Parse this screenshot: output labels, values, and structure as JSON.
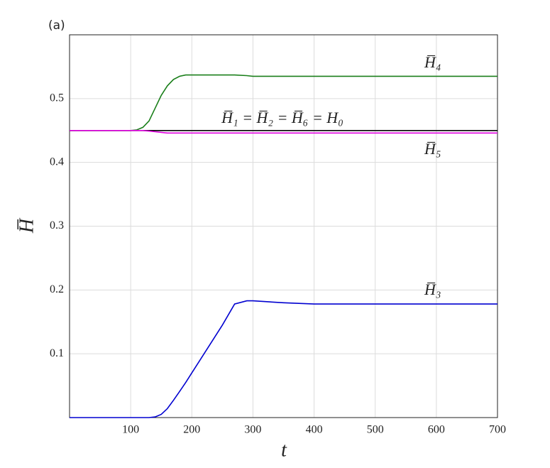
{
  "chart_data": {
    "type": "line",
    "panel_label": "(a)",
    "x_label": "t",
    "y_label": "H̅",
    "x": [
      0,
      100,
      110,
      120,
      130,
      140,
      150,
      160,
      170,
      180,
      190,
      200,
      250,
      270,
      290,
      300,
      350,
      400,
      500,
      600,
      700
    ],
    "series": [
      {
        "name": "H̅₄",
        "color": "#1a7f1a",
        "values": [
          0.45,
          0.45,
          0.451,
          0.455,
          0.465,
          0.485,
          0.505,
          0.52,
          0.53,
          0.535,
          0.537,
          0.537,
          0.537,
          0.537,
          0.536,
          0.535,
          0.535,
          0.535,
          0.535,
          0.535,
          0.535
        ]
      },
      {
        "name": "H̅₁ = H̅₂ = H̅₆ = H₀",
        "color": "#000000",
        "values": [
          0.45,
          0.45,
          0.45,
          0.45,
          0.45,
          0.45,
          0.45,
          0.45,
          0.45,
          0.45,
          0.45,
          0.45,
          0.45,
          0.45,
          0.45,
          0.45,
          0.45,
          0.45,
          0.45,
          0.45,
          0.45
        ]
      },
      {
        "name": "H̅₅",
        "color": "#e000e0",
        "values": [
          0.45,
          0.45,
          0.45,
          0.45,
          0.449,
          0.448,
          0.447,
          0.446,
          0.446,
          0.446,
          0.446,
          0.446,
          0.446,
          0.446,
          0.446,
          0.446,
          0.446,
          0.446,
          0.446,
          0.446,
          0.446
        ]
      },
      {
        "name": "H̅₃",
        "color": "#0000d0",
        "values": [
          0,
          0,
          0,
          0,
          0,
          0.001,
          0.005,
          0.014,
          0.027,
          0.041,
          0.055,
          0.07,
          0.145,
          0.178,
          0.183,
          0.183,
          0.18,
          0.178,
          0.178,
          0.178,
          0.178
        ]
      }
    ],
    "xlim": [
      0,
      700
    ],
    "xticks": [
      100,
      200,
      300,
      400,
      500,
      600,
      700
    ],
    "ylim": [
      0,
      0.6
    ],
    "yticks": [
      0.1,
      0.2,
      0.3,
      0.4,
      0.5
    ],
    "grid": true
  }
}
